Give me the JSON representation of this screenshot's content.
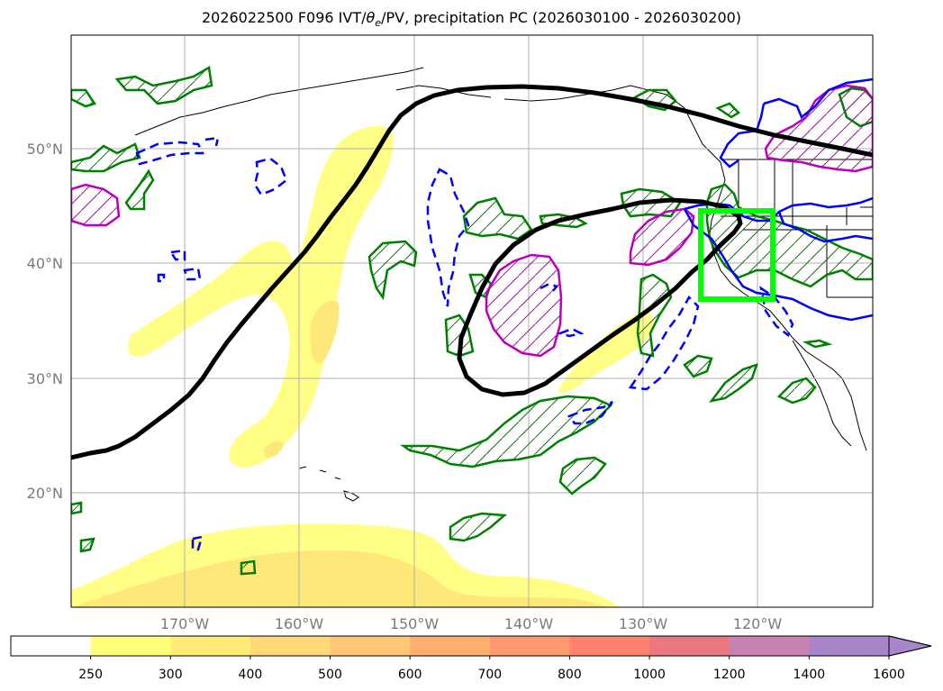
{
  "title": {
    "prefix": "2026022500 F096 IVT/",
    "theta": "θ",
    "theta_sub": "e",
    "suffix": "/PV, precipitation PC (2026030100 - 2026030200)"
  },
  "map": {
    "lon_labels": [
      "170°W",
      "160°W",
      "150°W",
      "140°W",
      "130°W",
      "120°W"
    ],
    "lat_labels": [
      "50°N",
      "40°N",
      "30°N",
      "20°N"
    ],
    "colors": {
      "ivt_fill_1": "#ffff88",
      "ivt_fill_2": "#ffe87a",
      "pv_contour": "#000000",
      "precip_pc_pos": "#008000",
      "precip_pc_pos2": "#bb00bb",
      "theta_neg": "#0000ff",
      "theta_pos": "#0000ff",
      "target_box": "#00ff00"
    }
  },
  "colorbar": {
    "levels": [
      "250",
      "300",
      "400",
      "500",
      "600",
      "700",
      "800",
      "1000",
      "1200",
      "1400",
      "1600"
    ],
    "colors": [
      "#ffffff",
      "#ffff7a",
      "#ffeb78",
      "#ffd977",
      "#ffc874",
      "#ffb070",
      "#ff9a6e",
      "#ff826e",
      "#e97880",
      "#c882b2",
      "#a884c9"
    ],
    "extend": "max"
  }
}
